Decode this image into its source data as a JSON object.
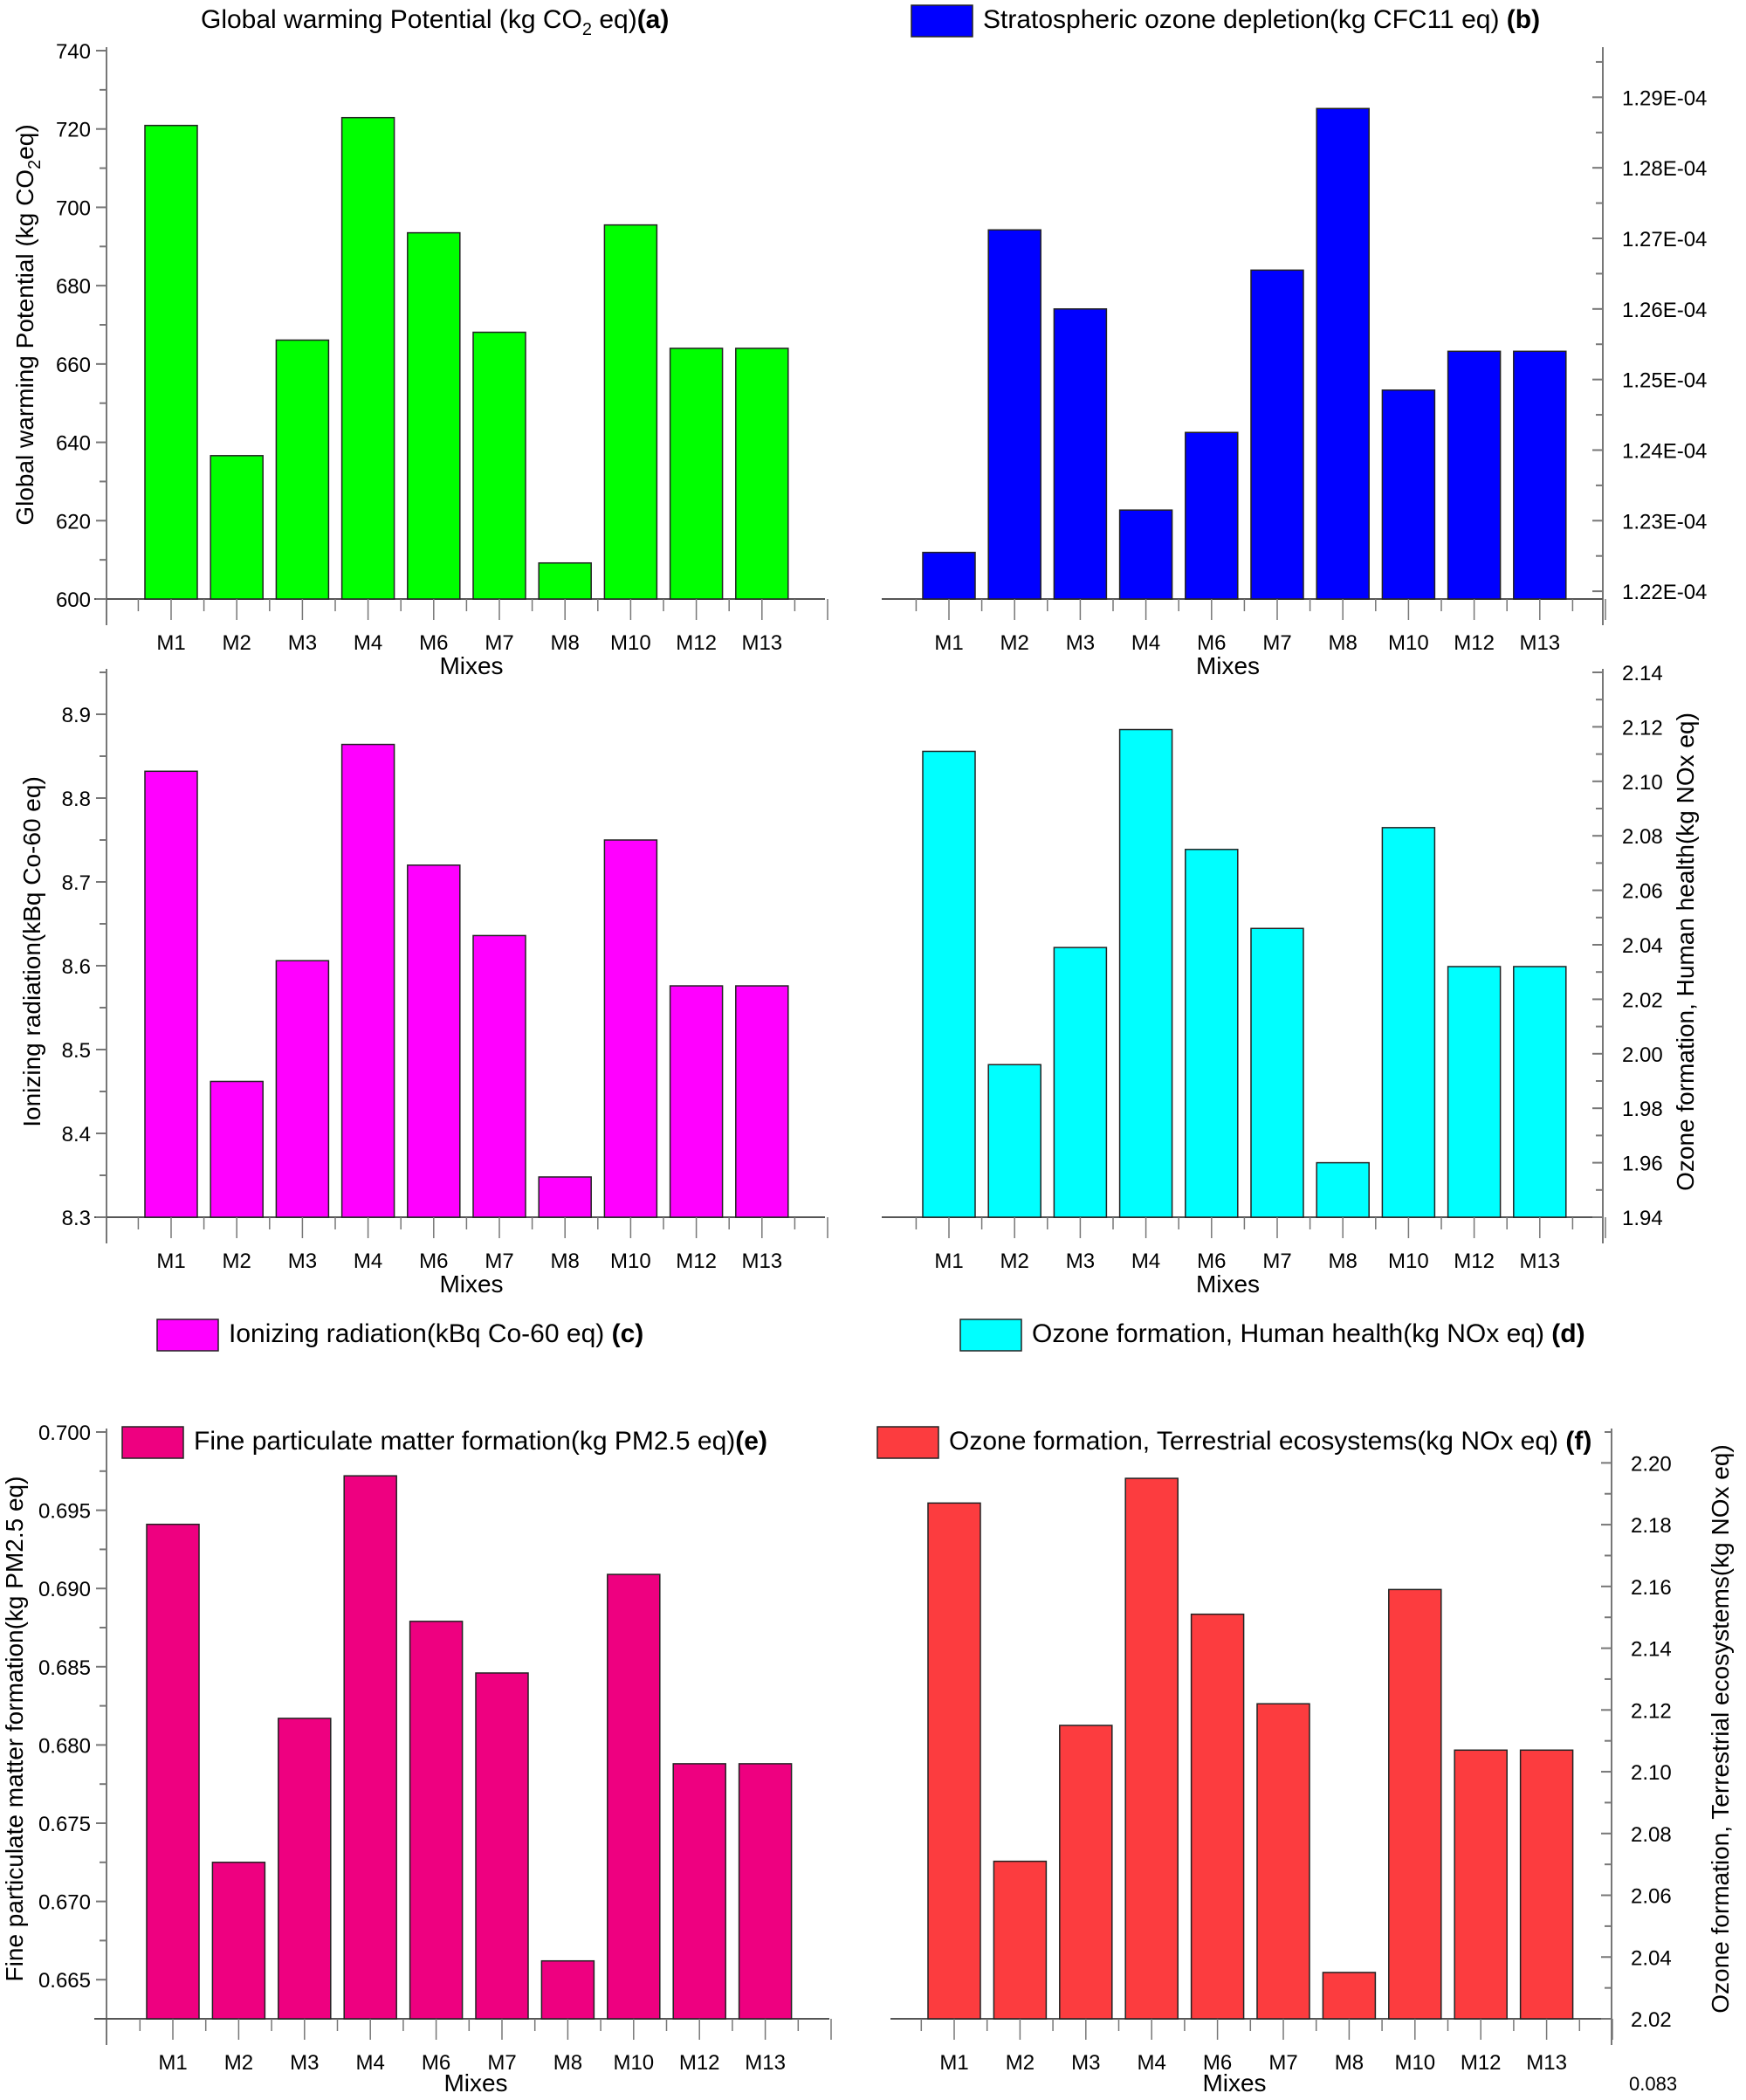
{
  "footnote": "0.083",
  "chart_data": [
    {
      "id": "a",
      "type": "bar",
      "title": "Global warming Potential (kg CO2 eq)",
      "title_parts": {
        "pre": "Global warming Potential (kg CO",
        "sub": "2",
        "post": " eq)",
        "tag": "(a)"
      },
      "legend_style": "title",
      "xlabel": "Mixes",
      "ylabel": "Global warming Potential (kg CO2eq)",
      "ylabel_parts": {
        "pre": "Global warming Potential (kg CO",
        "sub": "2",
        "post": "eq)"
      },
      "yaxis_side": "left",
      "color": "#00ff00",
      "categories": [
        "M1",
        "M2",
        "M3",
        "M4",
        "M6",
        "M7",
        "M8",
        "M10",
        "M12",
        "M13"
      ],
      "values": [
        720.9,
        636.6,
        666.1,
        722.9,
        693.5,
        668.1,
        609.2,
        695.5,
        664.0,
        664.0
      ],
      "ylim": [
        600,
        740
      ],
      "yticks": [
        "600",
        "620",
        "640",
        "660",
        "680",
        "700",
        "720",
        "740"
      ],
      "ytick_values": [
        600,
        620,
        640,
        660,
        680,
        700,
        720,
        740
      ],
      "grid": false
    },
    {
      "id": "b",
      "type": "bar",
      "title": "Stratospheric ozone depletion(kg CFC11 eq)",
      "title_parts": {
        "pre": "Stratospheric ozone depletion(kg CFC11 eq) ",
        "sub": "",
        "post": "",
        "tag": "(b)"
      },
      "legend_style": "swatch",
      "xlabel": "Mixes",
      "ylabel": "",
      "yaxis_side": "right",
      "color": "#0000ff",
      "categories": [
        "M1",
        "M2",
        "M3",
        "M4",
        "M6",
        "M7",
        "M8",
        "M10",
        "M12",
        "M13"
      ],
      "values": [
        0.00012255,
        0.00012712,
        0.000126,
        0.00012315,
        0.00012425,
        0.00012655,
        0.00012884,
        0.00012485,
        0.0001254,
        0.0001254
      ],
      "ylim": [
        0.00012189,
        0.00012966
      ],
      "yticks": [
        "1.22E-04",
        "1.23E-04",
        "1.24E-04",
        "1.25E-04",
        "1.26E-04",
        "1.27E-04",
        "1.28E-04",
        "1.29E-04"
      ],
      "ytick_values": [
        0.000122,
        0.000123,
        0.000124,
        0.000125,
        0.000126,
        0.000127,
        0.000128,
        0.000129
      ],
      "grid": false
    },
    {
      "id": "c",
      "type": "bar",
      "title": "Ionizing radiation(kBq Co-60 eq)",
      "title_parts": {
        "pre": "Ionizing radiation(kBq Co-60 eq) ",
        "sub": "",
        "post": "",
        "tag": "(c)"
      },
      "legend_style": "swatch-below",
      "xlabel": "Mixes",
      "ylabel": "Ionizing radiation(kBq Co-60 eq)",
      "yaxis_side": "left",
      "color": "#ff00ff",
      "categories": [
        "M1",
        "M2",
        "M3",
        "M4",
        "M6",
        "M7",
        "M8",
        "M10",
        "M12",
        "M13"
      ],
      "values": [
        8.832,
        8.462,
        8.606,
        8.864,
        8.72,
        8.636,
        8.348,
        8.75,
        8.576,
        8.576
      ],
      "ylim": [
        8.3,
        8.95
      ],
      "yticks": [
        "8.3",
        "8.4",
        "8.5",
        "8.6",
        "8.7",
        "8.8",
        "8.9"
      ],
      "ytick_values": [
        8.3,
        8.4,
        8.5,
        8.6,
        8.7,
        8.8,
        8.9
      ],
      "grid": false
    },
    {
      "id": "d",
      "type": "bar",
      "title": "Ozone formation, Human health(kg NOx eq)",
      "title_parts": {
        "pre": "Ozone formation, Human health(kg NOx eq) ",
        "sub": "",
        "post": "",
        "tag": "(d)"
      },
      "legend_style": "swatch-below",
      "xlabel": "Mixes",
      "ylabel": "Ozone formation, Human health(kg NOx eq)",
      "yaxis_side": "right",
      "color": "#00ffff",
      "categories": [
        "M1",
        "M2",
        "M3",
        "M4",
        "M6",
        "M7",
        "M8",
        "M10",
        "M12",
        "M13"
      ],
      "values": [
        2.111,
        1.996,
        2.039,
        2.119,
        2.075,
        2.046,
        1.96,
        2.083,
        2.032,
        2.032
      ],
      "ylim": [
        1.94,
        2.14
      ],
      "yticks": [
        "1.94",
        "1.96",
        "1.98",
        "2.00",
        "2.02",
        "2.04",
        "2.06",
        "2.08",
        "2.10",
        "2.12",
        "2.14"
      ],
      "ytick_values": [
        1.94,
        1.96,
        1.98,
        2.0,
        2.02,
        2.04,
        2.06,
        2.08,
        2.1,
        2.12,
        2.14
      ],
      "grid": false
    },
    {
      "id": "e",
      "type": "bar",
      "title": "Fine particulate matter formation(kg PM2.5 eq)",
      "title_parts": {
        "pre": "Fine particulate matter formation(kg PM2.5 eq)",
        "sub": "",
        "post": "",
        "tag": "(e)"
      },
      "legend_style": "swatch-inside",
      "xlabel": "Mixes",
      "ylabel": "Fine particulate matter formation(kg PM2.5 eq)",
      "yaxis_side": "left",
      "color": "#ee0080",
      "categories": [
        "M1",
        "M2",
        "M3",
        "M4",
        "M6",
        "M7",
        "M8",
        "M10",
        "M12",
        "M13"
      ],
      "values": [
        0.6941,
        0.6725,
        0.6817,
        0.6972,
        0.6879,
        0.6846,
        0.6662,
        0.6909,
        0.6788,
        0.6788
      ],
      "ylim": [
        0.6625,
        0.7
      ],
      "yticks": [
        "0.665",
        "0.670",
        "0.675",
        "0.680",
        "0.685",
        "0.690",
        "0.695",
        "0.700"
      ],
      "ytick_values": [
        0.665,
        0.67,
        0.675,
        0.68,
        0.685,
        0.69,
        0.695,
        0.7
      ],
      "grid": false
    },
    {
      "id": "f",
      "type": "bar",
      "title": "Ozone formation, Terrestrial ecosystems(kg NOx eq)",
      "title_parts": {
        "pre": "Ozone formation, Terrestrial ecosystems(kg NOx eq) ",
        "sub": "",
        "post": "",
        "tag": "(f)"
      },
      "legend_style": "swatch-inside",
      "xlabel": "Mixes",
      "ylabel": "Ozone formation, Terrestrial ecosystems(kg NOx eq)",
      "yaxis_side": "right",
      "color": "#fc3c3f",
      "categories": [
        "M1",
        "M2",
        "M3",
        "M4",
        "M6",
        "M7",
        "M8",
        "M10",
        "M12",
        "M13"
      ],
      "values": [
        2.187,
        2.071,
        2.115,
        2.195,
        2.151,
        2.122,
        2.035,
        2.159,
        2.107,
        2.107
      ],
      "ylim": [
        2.02,
        2.21
      ],
      "yticks": [
        "2.02",
        "2.04",
        "2.06",
        "2.08",
        "2.10",
        "2.12",
        "2.14",
        "2.16",
        "2.18",
        "2.20"
      ],
      "ytick_values": [
        2.02,
        2.04,
        2.06,
        2.08,
        2.1,
        2.12,
        2.14,
        2.16,
        2.18,
        2.2
      ],
      "grid": false
    }
  ]
}
